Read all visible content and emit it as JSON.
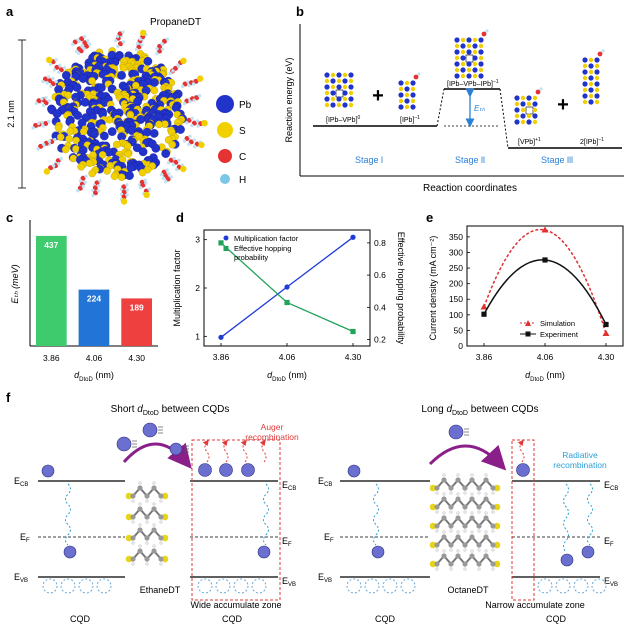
{
  "panel_a": {
    "letter": "a",
    "title": "PropaneDT",
    "size_label": "2.1 nm",
    "legend": [
      {
        "label": "Pb",
        "color": "#2233cc"
      },
      {
        "label": "S",
        "color": "#f2d000"
      },
      {
        "label": "C",
        "color": "#e53333"
      },
      {
        "label": "H",
        "color": "#7cc6e8"
      }
    ]
  },
  "panel_b": {
    "letter": "b",
    "ylabel": "Reaction energy (eV)",
    "xlabel": "Reaction coordinates",
    "stages": [
      "Stage l",
      "Stage ll",
      "Stage lll"
    ],
    "plus": "+",
    "eth_label": "Eₜₕ",
    "species": {
      "s1a_main": "[IPb–VPb]",
      "s1a_sup": "0",
      "s1b_main": "[IPb]",
      "s1b_sup": "–1",
      "s2_main": "[IPb–VPb–IPb]",
      "s2_sup": "–1",
      "s3a_main": "[VPb]",
      "s3a_sup": "+1",
      "s3b_main": "2[IPb]",
      "s3b_sup": "–1"
    }
  },
  "chart_data": [
    {
      "id": "c",
      "type": "bar",
      "title": "",
      "ylabel": "Eₜₕ (meV)",
      "xlabel": "dDtoD (nm)",
      "categories": [
        "3.86",
        "4.06",
        "4.30"
      ],
      "values": [
        437,
        224,
        189
      ],
      "colors": [
        "#3ecb6e",
        "#2274d6",
        "#ef4040"
      ],
      "ylim": [
        0,
        500
      ]
    },
    {
      "id": "d",
      "type": "line",
      "title": "",
      "xlabel": "dDtoD (nm)",
      "ylabel_left": "Multiplication factor",
      "ylabel_right": "Effective hopping probability",
      "x": [
        "3.86",
        "4.06",
        "4.30"
      ],
      "yticks_left": [
        "1",
        "2",
        "3"
      ],
      "yticks_right": [
        "0.2",
        "0.4",
        "0.6",
        "0.8"
      ],
      "ylim_left": [
        0.8,
        3.2
      ],
      "ylim_right": [
        0.16,
        0.88
      ],
      "series": [
        {
          "name": "Multiplication factor",
          "axis": "left",
          "color": "#1f3bd6",
          "marker": "circle",
          "values": [
            0.98,
            2.02,
            3.05
          ]
        },
        {
          "name": "Effective hopping probability",
          "axis": "right",
          "color": "#22a35a",
          "marker": "square",
          "values": [
            0.8,
            0.43,
            0.25
          ]
        }
      ]
    },
    {
      "id": "e",
      "type": "line",
      "title": "",
      "xlabel": "dDtoD (nm)",
      "ylabel": "Current density (mA cm⁻²)",
      "x": [
        "3.86",
        "4.06",
        "4.30"
      ],
      "yticks": [
        "0",
        "50",
        "100",
        "150",
        "200",
        "250",
        "300",
        "350"
      ],
      "ylim": [
        0,
        385
      ],
      "series": [
        {
          "name": "Simulation",
          "color": "#e03030",
          "marker": "triangle",
          "dashed": true,
          "values": [
            125,
            372,
            40
          ]
        },
        {
          "name": "Experiment",
          "color": "#111111",
          "marker": "square",
          "dashed": false,
          "values": [
            102,
            276,
            69
          ]
        }
      ]
    }
  ],
  "panel_c": {
    "letter": "c"
  },
  "panel_d": {
    "letter": "d"
  },
  "panel_e": {
    "letter": "e"
  },
  "panel_f": {
    "letter": "f",
    "left_title_pre": "Short ",
    "left_title_post": " between CQDs",
    "right_title_pre": "Long ",
    "right_title_post": " between CQDs",
    "d_main": "d",
    "d_sub": "DtoD",
    "auger_line1": "Auger",
    "auger_line2": "recombination",
    "radiative_line1": "Radiative",
    "radiative_line2": "recombination",
    "ligand_left": "EthaneDT",
    "ligand_right": "OctaneDT",
    "zone_left": "Wide accumulate zone",
    "zone_right": "Narrow accumulate zone",
    "cqd": "CQD",
    "e_cb": "E",
    "e_cb_sub": "CB",
    "e_f": "E",
    "e_f_sub": "F",
    "e_vb": "E",
    "e_vb_sub": "VB",
    "colors": {
      "accent_red": "#e03a3a",
      "accent_blue": "#2a9fd6",
      "arrow": "#8a1f8a",
      "electron": "#6a6fd0"
    }
  }
}
